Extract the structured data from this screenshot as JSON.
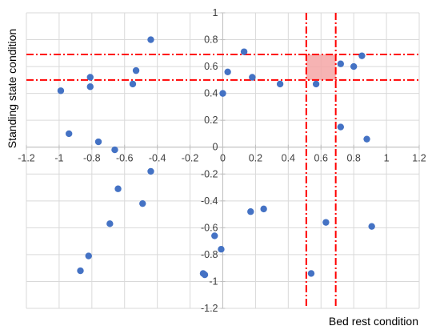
{
  "chart_data": {
    "type": "scatter",
    "title": "",
    "xlabel": "Bed rest condition",
    "ylabel": "Standing state condition",
    "xlim": [
      -1.2,
      1.2
    ],
    "ylim": [
      -1.2,
      1.0
    ],
    "x_ticks": [
      -1.2,
      -1.0,
      -0.8,
      -0.6,
      -0.4,
      -0.2,
      0,
      0.2,
      0.4,
      0.6,
      0.8,
      1.0,
      1.2
    ],
    "y_ticks": [
      1.0,
      0.8,
      0.6,
      0.4,
      0.2,
      0,
      -0.2,
      -0.4,
      -0.6,
      -0.8,
      -1.0,
      -1.2
    ],
    "x_tick_labels": [
      "-1.2",
      "-1",
      "-0.8",
      "-0.6",
      "-0.4",
      "-0.2",
      "0",
      "0.2",
      "0.4",
      "0.6",
      "0.8",
      "1",
      "1.2"
    ],
    "y_tick_labels": [
      "1",
      "0.8",
      "0.6",
      "0.4",
      "0.2",
      "0",
      "-0.2",
      "-0.4",
      "-0.6",
      "-0.8",
      "-1",
      "-1.2"
    ],
    "grid": true,
    "marker_color": "#4472C4",
    "threshold_color": "#FF0000",
    "highlight_color": "#F4A6A6",
    "threshold_lines": {
      "vertical": [
        0.51,
        0.69
      ],
      "horizontal": [
        0.5,
        0.69
      ]
    },
    "highlight_region": {
      "x": [
        0.51,
        0.69
      ],
      "y": [
        0.5,
        0.69
      ]
    },
    "points": [
      {
        "x": -0.44,
        "y": 0.8
      },
      {
        "x": -0.53,
        "y": 0.57
      },
      {
        "x": -0.55,
        "y": 0.47
      },
      {
        "x": -0.81,
        "y": 0.52
      },
      {
        "x": -0.81,
        "y": 0.45
      },
      {
        "x": -0.99,
        "y": 0.42
      },
      {
        "x": -0.94,
        "y": 0.1
      },
      {
        "x": -0.76,
        "y": 0.04
      },
      {
        "x": -0.66,
        "y": -0.02
      },
      {
        "x": -0.44,
        "y": -0.18
      },
      {
        "x": -0.64,
        "y": -0.31
      },
      {
        "x": -0.49,
        "y": -0.42
      },
      {
        "x": -0.69,
        "y": -0.57
      },
      {
        "x": -0.82,
        "y": -0.81
      },
      {
        "x": -0.87,
        "y": -0.92
      },
      {
        "x": -0.12,
        "y": -0.94
      },
      {
        "x": -0.11,
        "y": -0.95
      },
      {
        "x": -0.05,
        "y": -0.66
      },
      {
        "x": -0.01,
        "y": -0.76
      },
      {
        "x": 0.0,
        "y": 0.4
      },
      {
        "x": 0.03,
        "y": 0.56
      },
      {
        "x": 0.13,
        "y": 0.71
      },
      {
        "x": 0.18,
        "y": 0.52
      },
      {
        "x": 0.35,
        "y": 0.47
      },
      {
        "x": 0.17,
        "y": -0.48
      },
      {
        "x": 0.25,
        "y": -0.46
      },
      {
        "x": 0.57,
        "y": 0.47
      },
      {
        "x": 0.72,
        "y": 0.62
      },
      {
        "x": 0.8,
        "y": 0.6
      },
      {
        "x": 0.85,
        "y": 0.68
      },
      {
        "x": 0.72,
        "y": 0.15
      },
      {
        "x": 0.88,
        "y": 0.06
      },
      {
        "x": 0.63,
        "y": -0.56
      },
      {
        "x": 0.91,
        "y": -0.59
      },
      {
        "x": 0.54,
        "y": -0.94
      }
    ]
  }
}
